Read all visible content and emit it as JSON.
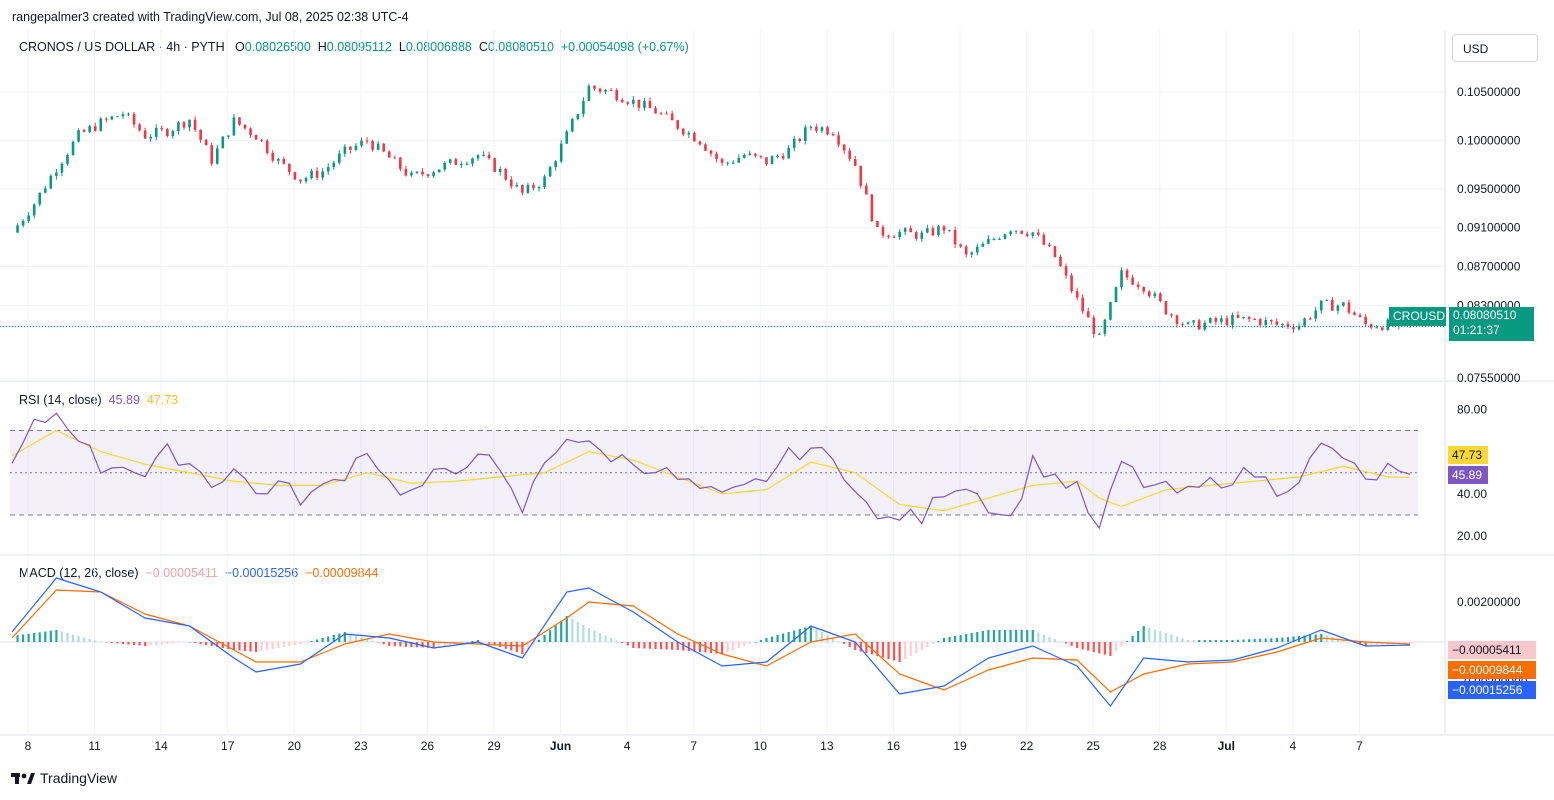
{
  "header": {
    "credit": "rangepalmer3 created with TradingView.com, Jul 08, 2025 02:38 UTC-4",
    "symbol": "CRONOS / US DOLLAR · 4h · PYTH",
    "o_label": "O",
    "o_value": "0.08026500",
    "h_label": "H",
    "h_value": "0.08095112",
    "l_label": "L",
    "l_value": "0.08006888",
    "c_label": "C",
    "c_value": "0.08080510",
    "change": "+0.00054098 (+0.67%)",
    "currency": "USD"
  },
  "price_tag": {
    "symbol": "CROUSD",
    "price": "0.08080510",
    "countdown": "01:21:37"
  },
  "rsi": {
    "label": "RSI (14, close)",
    "value": "45.89",
    "ma_value": "47.73",
    "tag_rsi": "45.89",
    "tag_ma": "47.73"
  },
  "macd": {
    "label": "MACD (12, 26, close)",
    "hist_value": "−0.00005411",
    "macd_value": "−0.00015256",
    "signal_value": "−0.00009844",
    "tag_hist": "−0.00005411",
    "tag_signal": "−0.00009844",
    "tag_macd": "−0.00015256"
  },
  "footer": {
    "brand": "TradingView"
  },
  "colors": {
    "up": "#089981",
    "down": "#f23645",
    "rsi": "#7e57c2",
    "rsi_ma": "#fdd835",
    "macd": "#2962ff",
    "signal": "#ff6d00"
  },
  "chart_data": [
    {
      "type": "candlestick",
      "title": "CRONOS / US DOLLAR · 4h · PYTH",
      "ylim": [
        0.0755,
        0.1085
      ],
      "y_ticks": [
        "0.10500000",
        "0.10000000",
        "0.09500000",
        "0.09100000",
        "0.08700000",
        "0.08300000",
        "0.07550000"
      ],
      "x_ticks": [
        "8",
        "11",
        "14",
        "17",
        "20",
        "23",
        "26",
        "29",
        "Jun",
        "4",
        "7",
        "10",
        "13",
        "16",
        "19",
        "22",
        "25",
        "28",
        "Jul",
        "4",
        "7"
      ],
      "close_path": [
        [
          0,
          0.0905
        ],
        [
          2,
          0.0935
        ],
        [
          4,
          0.0972
        ],
        [
          6,
          0.1005
        ],
        [
          8,
          0.1018
        ],
        [
          10,
          0.1028
        ],
        [
          12,
          0.1005
        ],
        [
          14,
          0.101
        ],
        [
          16,
          0.1022
        ],
        [
          18,
          0.098
        ],
        [
          20,
          0.102
        ],
        [
          22,
          0.1005
        ],
        [
          24,
          0.0978
        ],
        [
          26,
          0.096
        ],
        [
          28,
          0.0968
        ],
        [
          30,
          0.0988
        ],
        [
          32,
          0.1
        ],
        [
          34,
          0.0982
        ],
        [
          36,
          0.0962
        ],
        [
          38,
          0.097
        ],
        [
          40,
          0.0978
        ],
        [
          42,
          0.0985
        ],
        [
          44,
          0.0968
        ],
        [
          46,
          0.0945
        ],
        [
          48,
          0.096
        ],
        [
          50,
          0.1005
        ],
        [
          52,
          0.1055
        ],
        [
          54,
          0.105
        ],
        [
          56,
          0.104
        ],
        [
          58,
          0.103
        ],
        [
          60,
          0.1015
        ],
        [
          62,
          0.1
        ],
        [
          64,
          0.0975
        ],
        [
          66,
          0.0985
        ],
        [
          68,
          0.0978
        ],
        [
          70,
          0.099
        ],
        [
          72,
          0.1015
        ],
        [
          74,
          0.101
        ],
        [
          76,
          0.0975
        ],
        [
          78,
          0.0905
        ],
        [
          80,
          0.0905
        ],
        [
          82,
          0.0902
        ],
        [
          84,
          0.091
        ],
        [
          86,
          0.088
        ],
        [
          88,
          0.0895
        ],
        [
          90,
          0.091
        ],
        [
          92,
          0.0905
        ],
        [
          94,
          0.088
        ],
        [
          96,
          0.0835
        ],
        [
          98,
          0.0795
        ],
        [
          100,
          0.0862
        ],
        [
          102,
          0.085
        ],
        [
          104,
          0.0825
        ],
        [
          106,
          0.0808
        ],
        [
          108,
          0.0812
        ],
        [
          110,
          0.0815
        ],
        [
          112,
          0.0815
        ],
        [
          114,
          0.081
        ],
        [
          116,
          0.081
        ],
        [
          118,
          0.083
        ],
        [
          120,
          0.083
        ],
        [
          122,
          0.081
        ],
        [
          124,
          0.081
        ],
        [
          126,
          0.0808051
        ]
      ],
      "last_price": 0.0808051
    },
    {
      "type": "line",
      "title": "RSI (14, close)",
      "ylim": [
        12,
        92
      ],
      "y_ticks": [
        "80.00",
        "60.00",
        "40.00",
        "20.00"
      ],
      "bands": [
        70,
        50,
        30
      ],
      "series": [
        {
          "name": "RSI",
          "values": [
            [
              0,
              53
            ],
            [
              2,
              72
            ],
            [
              4,
              78
            ],
            [
              6,
              68
            ],
            [
              8,
              52
            ],
            [
              10,
              55
            ],
            [
              12,
              48
            ],
            [
              14,
              60
            ],
            [
              16,
              55
            ],
            [
              18,
              45
            ],
            [
              20,
              52
            ],
            [
              22,
              40
            ],
            [
              24,
              45
            ],
            [
              26,
              38
            ],
            [
              28,
              42
            ],
            [
              30,
              50
            ],
            [
              32,
              62
            ],
            [
              34,
              45
            ],
            [
              36,
              40
            ],
            [
              38,
              48
            ],
            [
              40,
              50
            ],
            [
              42,
              62
            ],
            [
              44,
              48
            ],
            [
              46,
              32
            ],
            [
              48,
              55
            ],
            [
              50,
              68
            ],
            [
              52,
              62
            ],
            [
              54,
              58
            ],
            [
              56,
              55
            ],
            [
              58,
              52
            ],
            [
              60,
              47
            ],
            [
              62,
              42
            ],
            [
              64,
              38
            ],
            [
              66,
              42
            ],
            [
              68,
              48
            ],
            [
              70,
              58
            ],
            [
              72,
              62
            ],
            [
              74,
              55
            ],
            [
              76,
              45
            ],
            [
              78,
              26
            ],
            [
              80,
              30
            ],
            [
              82,
              28
            ],
            [
              84,
              42
            ],
            [
              86,
              45
            ],
            [
              88,
              35
            ],
            [
              90,
              28
            ],
            [
              92,
              55
            ],
            [
              94,
              48
            ],
            [
              96,
              42
            ],
            [
              98,
              22
            ],
            [
              100,
              55
            ],
            [
              102,
              45
            ],
            [
              104,
              42
            ],
            [
              106,
              40
            ],
            [
              108,
              45
            ],
            [
              110,
              48
            ],
            [
              112,
              50
            ],
            [
              114,
              42
            ],
            [
              116,
              48
            ],
            [
              118,
              62
            ],
            [
              120,
              58
            ],
            [
              122,
              45
            ],
            [
              124,
              52
            ],
            [
              126,
              45.89
            ]
          ]
        },
        {
          "name": "RSI-based MA",
          "values": [
            [
              0,
              58
            ],
            [
              4,
              70
            ],
            [
              8,
              60
            ],
            [
              12,
              54
            ],
            [
              16,
              50
            ],
            [
              20,
              46
            ],
            [
              24,
              44
            ],
            [
              28,
              44
            ],
            [
              32,
              50
            ],
            [
              36,
              45
            ],
            [
              40,
              46
            ],
            [
              44,
              48
            ],
            [
              48,
              50
            ],
            [
              52,
              60
            ],
            [
              56,
              56
            ],
            [
              60,
              48
            ],
            [
              64,
              40
            ],
            [
              68,
              42
            ],
            [
              72,
              55
            ],
            [
              76,
              50
            ],
            [
              80,
              35
            ],
            [
              84,
              32
            ],
            [
              88,
              38
            ],
            [
              92,
              44
            ],
            [
              96,
              46
            ],
            [
              98,
              38
            ],
            [
              100,
              34
            ],
            [
              104,
              42
            ],
            [
              108,
              44
            ],
            [
              112,
              46
            ],
            [
              116,
              48
            ],
            [
              120,
              53
            ],
            [
              124,
              48
            ],
            [
              126,
              47.73
            ]
          ]
        }
      ]
    },
    {
      "type": "line",
      "title": "MACD (12, 26, close)",
      "ylim": [
        -0.0044,
        0.0042
      ],
      "y_ticks": [
        "0.00200000",
        "−0.00200000"
      ],
      "series": [
        {
          "name": "MACD",
          "values": [
            [
              0,
              0.0005
            ],
            [
              4,
              0.0032
            ],
            [
              8,
              0.0025
            ],
            [
              12,
              0.0012
            ],
            [
              16,
              0.0008
            ],
            [
              20,
              -0.0008
            ],
            [
              22,
              -0.0015
            ],
            [
              26,
              -0.0011
            ],
            [
              30,
              0.0004
            ],
            [
              34,
              0.0002
            ],
            [
              38,
              -0.0003
            ],
            [
              42,
              0.0
            ],
            [
              46,
              -0.0008
            ],
            [
              50,
              0.0025
            ],
            [
              52,
              0.0027
            ],
            [
              56,
              0.0015
            ],
            [
              60,
              0.0
            ],
            [
              64,
              -0.0012
            ],
            [
              68,
              -0.001
            ],
            [
              72,
              0.0008
            ],
            [
              76,
              0.0
            ],
            [
              80,
              -0.0026
            ],
            [
              84,
              -0.0022
            ],
            [
              88,
              -0.0008
            ],
            [
              92,
              -0.0002
            ],
            [
              96,
              -0.0012
            ],
            [
              99,
              -0.0032
            ],
            [
              102,
              -0.0008
            ],
            [
              106,
              -0.001
            ],
            [
              110,
              -0.0009
            ],
            [
              114,
              -0.0003
            ],
            [
              118,
              0.0006
            ],
            [
              122,
              -0.0002
            ],
            [
              126,
              -0.00015256
            ]
          ]
        },
        {
          "name": "Signal",
          "values": [
            [
              0,
              0.0002
            ],
            [
              4,
              0.0026
            ],
            [
              8,
              0.0025
            ],
            [
              12,
              0.0014
            ],
            [
              16,
              0.0008
            ],
            [
              20,
              -0.0004
            ],
            [
              22,
              -0.001
            ],
            [
              26,
              -0.001
            ],
            [
              30,
              -0.0001
            ],
            [
              34,
              0.0004
            ],
            [
              38,
              0.0
            ],
            [
              42,
              -0.0001
            ],
            [
              46,
              -0.0002
            ],
            [
              50,
              0.0012
            ],
            [
              52,
              0.002
            ],
            [
              56,
              0.0018
            ],
            [
              60,
              0.0004
            ],
            [
              64,
              -0.0006
            ],
            [
              68,
              -0.0012
            ],
            [
              72,
              0.0
            ],
            [
              76,
              0.0004
            ],
            [
              80,
              -0.0016
            ],
            [
              84,
              -0.0024
            ],
            [
              88,
              -0.0014
            ],
            [
              92,
              -0.0008
            ],
            [
              96,
              -0.0009
            ],
            [
              99,
              -0.0025
            ],
            [
              102,
              -0.0016
            ],
            [
              106,
              -0.0011
            ],
            [
              110,
              -0.001
            ],
            [
              114,
              -0.0005
            ],
            [
              118,
              0.0002
            ],
            [
              122,
              0.0
            ],
            [
              126,
              -9.844e-05
            ]
          ]
        },
        {
          "name": "Histogram",
          "values": [
            [
              0,
              0.0003
            ],
            [
              4,
              0.0006
            ],
            [
              8,
              0.0
            ],
            [
              12,
              -0.0002
            ],
            [
              16,
              0.0
            ],
            [
              20,
              -0.0004
            ],
            [
              22,
              -0.0005
            ],
            [
              26,
              -0.0001
            ],
            [
              30,
              0.0005
            ],
            [
              34,
              -0.0002
            ],
            [
              38,
              -0.0003
            ],
            [
              42,
              0.0001
            ],
            [
              46,
              -0.0006
            ],
            [
              50,
              0.0013
            ],
            [
              52,
              0.0007
            ],
            [
              56,
              -0.0003
            ],
            [
              60,
              -0.0004
            ],
            [
              64,
              -0.0006
            ],
            [
              68,
              0.0002
            ],
            [
              72,
              0.0008
            ],
            [
              76,
              -0.0004
            ],
            [
              80,
              -0.001
            ],
            [
              84,
              0.0002
            ],
            [
              88,
              0.0006
            ],
            [
              92,
              0.0006
            ],
            [
              96,
              -0.0003
            ],
            [
              99,
              -0.0007
            ],
            [
              102,
              0.0008
            ],
            [
              106,
              0.0001
            ],
            [
              110,
              0.0001
            ],
            [
              114,
              0.0002
            ],
            [
              118,
              0.0004
            ],
            [
              122,
              -0.0002
            ],
            [
              126,
              -5.411e-05
            ]
          ]
        }
      ]
    }
  ]
}
